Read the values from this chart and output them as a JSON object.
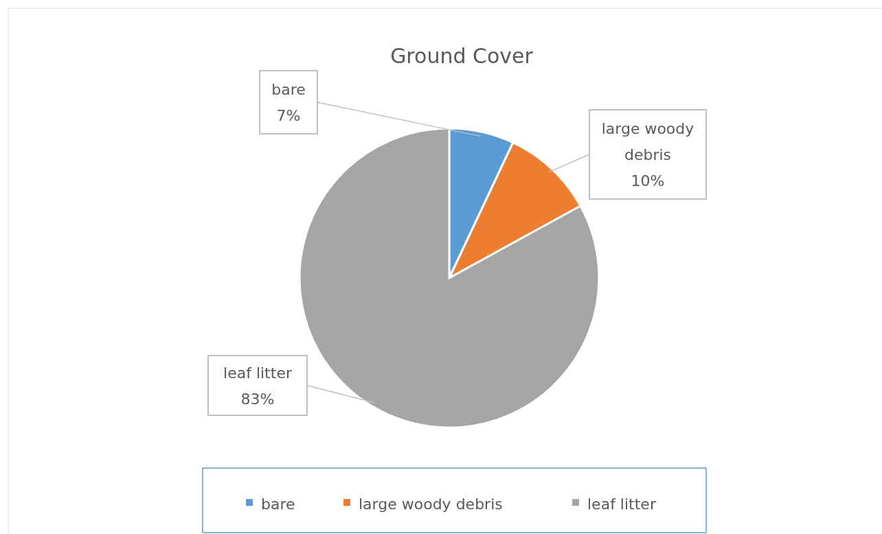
{
  "chart_data": {
    "type": "pie",
    "title": "Ground Cover",
    "categories": [
      "bare",
      "large woody debris",
      "leaf litter"
    ],
    "values": [
      7,
      10,
      83
    ],
    "colors": [
      "#5b9bd5",
      "#ed7d31",
      "#a5a5a5"
    ],
    "value_labels": [
      "7%",
      "10%",
      "83%"
    ],
    "legend": "bottom"
  }
}
